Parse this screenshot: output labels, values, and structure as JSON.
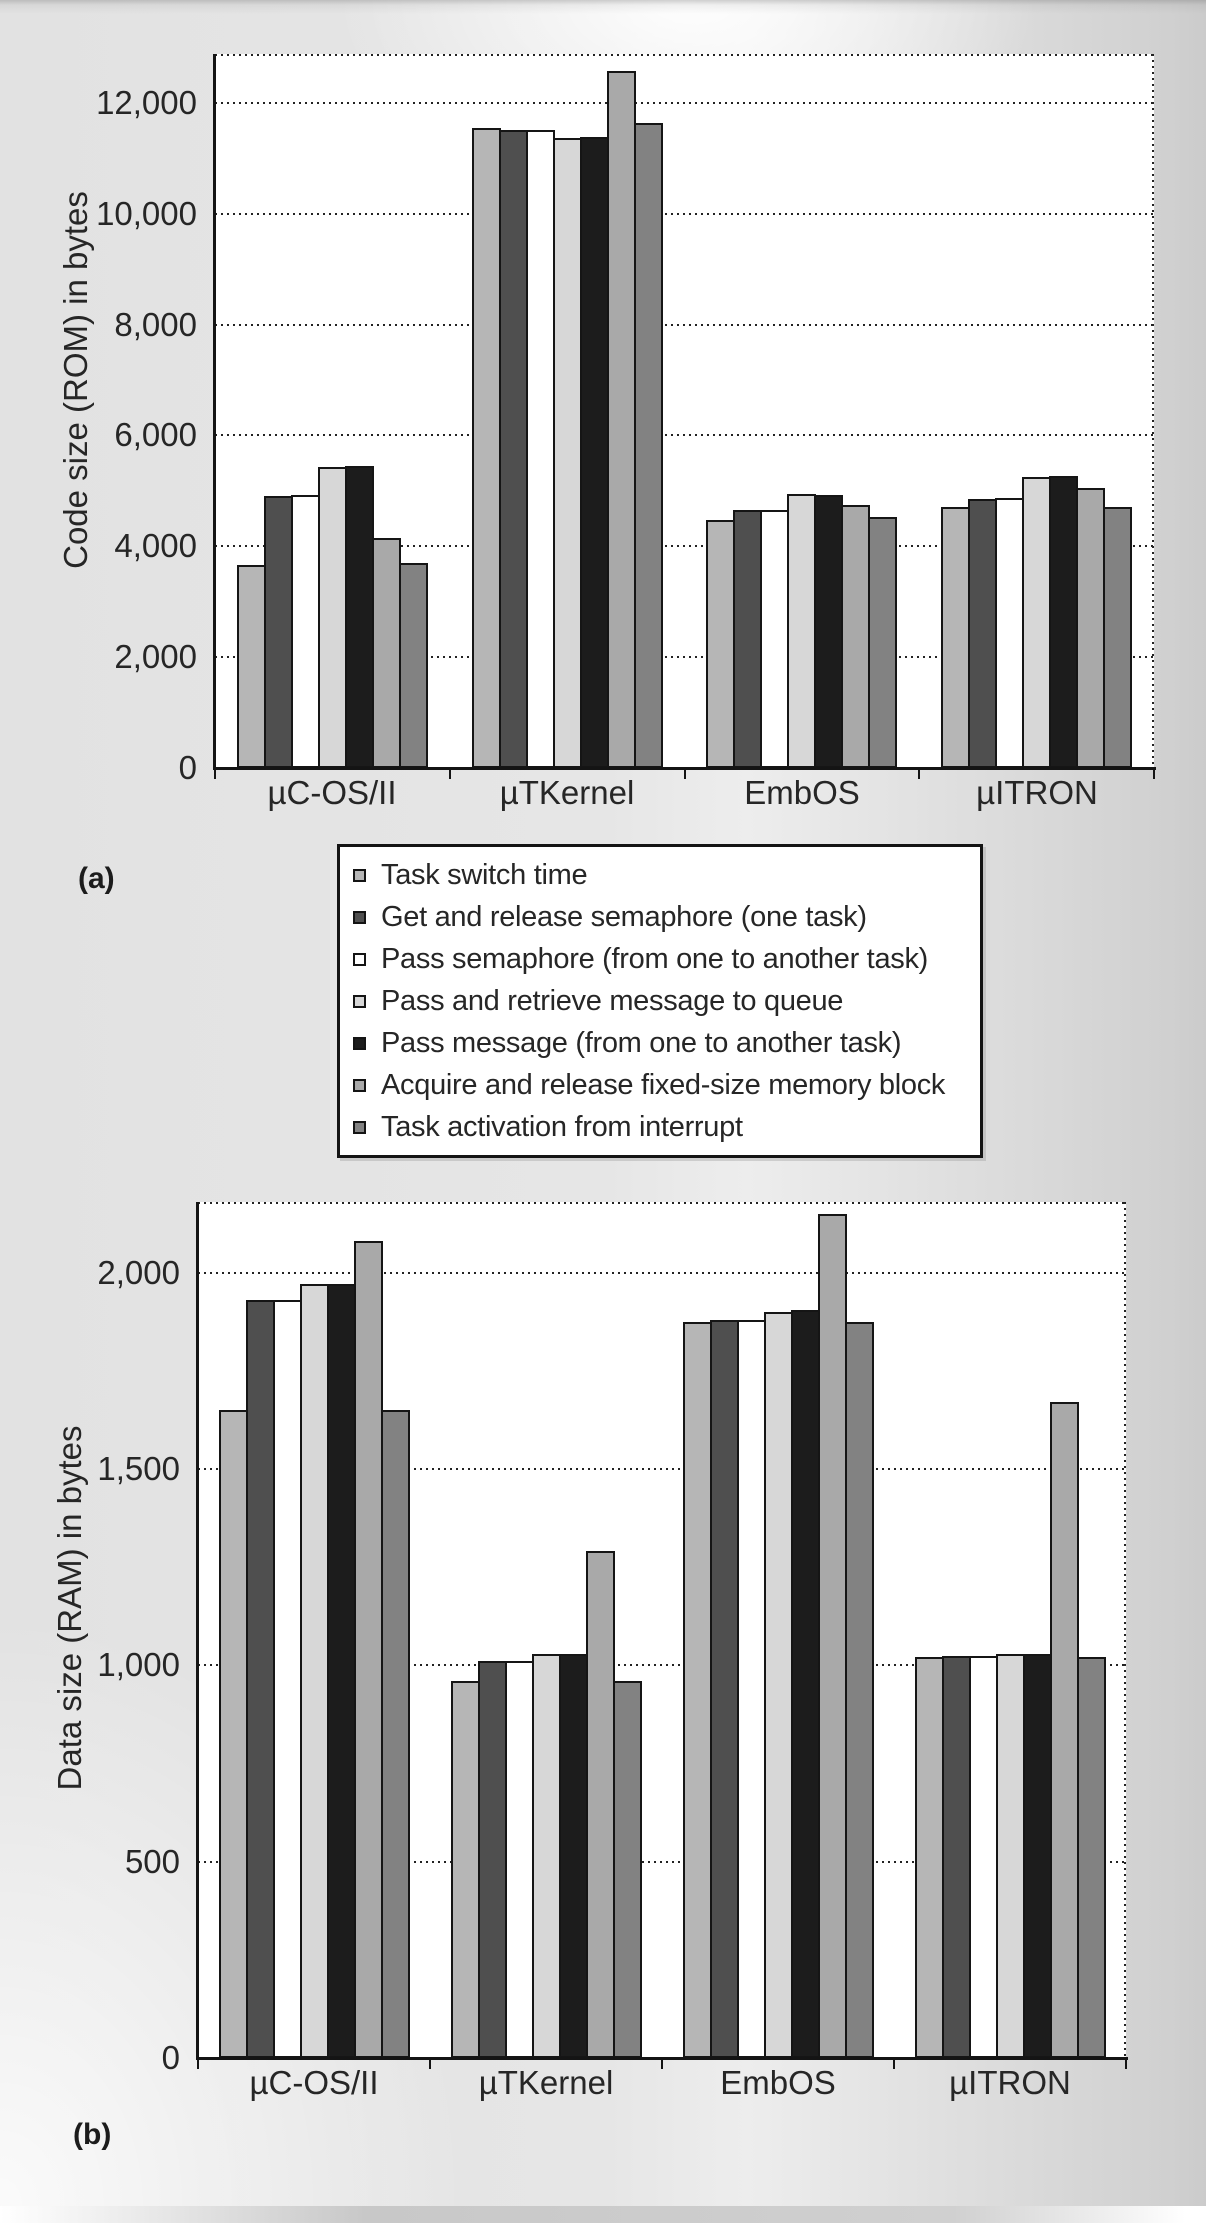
{
  "figure": {
    "panels": [
      "(a)",
      "(b)"
    ],
    "text_color": "#262626",
    "line_color": "#141414"
  },
  "legend": {
    "items": [
      "Task switch time",
      "Get and release semaphore (one task)",
      "Pass semaphore (from one to another task)",
      "Pass and retrieve message to queue",
      "Pass message (from one to another task)",
      "Acquire and release fixed-size memory block",
      "Task activation from interrupt"
    ]
  },
  "chart_data": [
    {
      "type": "bar",
      "panel_label": "(a)",
      "ylabel": "Code size (ROM) in bytes",
      "categories": [
        "µC-OS/II",
        "µTKernel",
        "EmbOS",
        "µITRON"
      ],
      "ylim": [
        0,
        12880
      ],
      "grid": "dotted horizontal, dotted top and right frame",
      "legend_position": "below",
      "yticks": [
        {
          "v": 0,
          "label": "0"
        },
        {
          "v": 2000,
          "label": "2,000"
        },
        {
          "v": 4000,
          "label": "4,000"
        },
        {
          "v": 6000,
          "label": "6,000"
        },
        {
          "v": 8000,
          "label": "8,000"
        },
        {
          "v": 10000,
          "label": "10,000"
        },
        {
          "v": 12000,
          "label": "12,000"
        }
      ],
      "series": [
        {
          "name": "Task switch time",
          "color": "#b6b6b6",
          "values": [
            3670,
            11540,
            4480,
            4710
          ]
        },
        {
          "name": "Get and release semaphore (one task)",
          "color": "#4f4f4f",
          "values": [
            4910,
            11500,
            4650,
            4860
          ]
        },
        {
          "name": "Pass semaphore (from one to another task)",
          "color": "#ffffff",
          "values": [
            4920,
            11510,
            4650,
            4870
          ]
        },
        {
          "name": "Pass and retrieve message to queue",
          "color": "#d7d7d7",
          "values": [
            5430,
            11360,
            4940,
            5250
          ]
        },
        {
          "name": "Pass message (from one to another task)",
          "color": "#1c1c1c",
          "values": [
            5450,
            11380,
            4930,
            5270
          ]
        },
        {
          "name": "Acquire and release fixed-size memory block",
          "color": "#a9a9a9",
          "values": [
            4150,
            12580,
            4740,
            5050
          ]
        },
        {
          "name": "Task activation from interrupt",
          "color": "#828282",
          "values": [
            3700,
            11630,
            4530,
            4710
          ]
        }
      ]
    },
    {
      "type": "bar",
      "panel_label": "(b)",
      "ylabel": "Data size (RAM) in bytes",
      "categories": [
        "µC-OS/II",
        "µTKernel",
        "EmbOS",
        "µITRON"
      ],
      "ylim": [
        0,
        2180
      ],
      "grid": "dotted horizontal, dotted top and right frame",
      "yticks": [
        {
          "v": 0,
          "label": "0"
        },
        {
          "v": 500,
          "label": "500"
        },
        {
          "v": 1000,
          "label": "1,000"
        },
        {
          "v": 1500,
          "label": "1,500"
        },
        {
          "v": 2000,
          "label": "2,000"
        }
      ],
      "series": [
        {
          "name": "Task switch time",
          "color": "#b6b6b6",
          "values": [
            1650,
            960,
            1875,
            1020
          ]
        },
        {
          "name": "Get and release semaphore (one task)",
          "color": "#4f4f4f",
          "values": [
            1930,
            1010,
            1880,
            1025
          ]
        },
        {
          "name": "Pass semaphore (from one to another task)",
          "color": "#ffffff",
          "values": [
            1930,
            1010,
            1880,
            1025
          ]
        },
        {
          "name": "Pass and retrieve message to queue",
          "color": "#d7d7d7",
          "values": [
            1970,
            1030,
            1900,
            1030
          ]
        },
        {
          "name": "Pass message (from one to another task)",
          "color": "#1c1c1c",
          "values": [
            1970,
            1030,
            1905,
            1030
          ]
        },
        {
          "name": "Acquire and release fixed-size memory block",
          "color": "#a9a9a9",
          "values": [
            2080,
            1290,
            2150,
            1670
          ]
        },
        {
          "name": "Task activation from interrupt",
          "color": "#828282",
          "values": [
            1650,
            960,
            1875,
            1020
          ]
        }
      ]
    }
  ]
}
